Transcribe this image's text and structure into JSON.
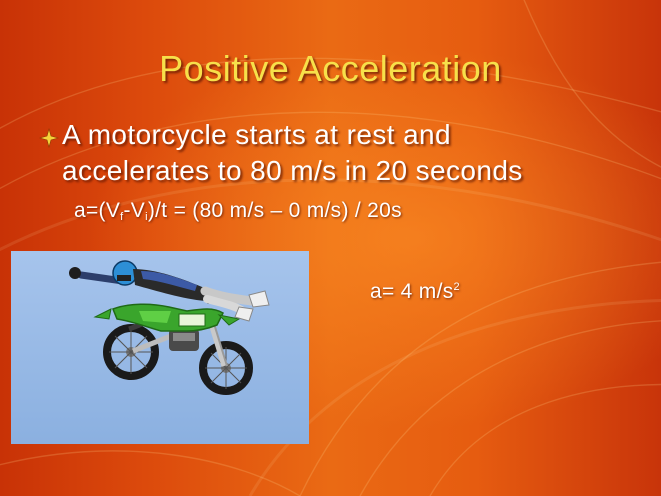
{
  "slide": {
    "title": "Positive Acceleration",
    "bullet_line_1": "A motorcycle starts at rest and",
    "bullet_line_2": "accelerates to 80 m/s in 20 seconds",
    "formula": {
      "part_1": "a=(V",
      "sub_final": "f",
      "part_2": "-V",
      "sub_initial": "i",
      "part_3": ")/t  = (80 m/s – 0 m/s) / 20s"
    },
    "result": {
      "text": "a= 4 m/s",
      "exponent": "2"
    },
    "photo_icon": "motocross-rider-photo"
  },
  "colors": {
    "background_orange": "#e65c10",
    "title_yellow": "#f7e04a",
    "bullet_text": "#ffffff",
    "photo_sky": "#93b7e6",
    "bike_green": "#3aa52c"
  }
}
